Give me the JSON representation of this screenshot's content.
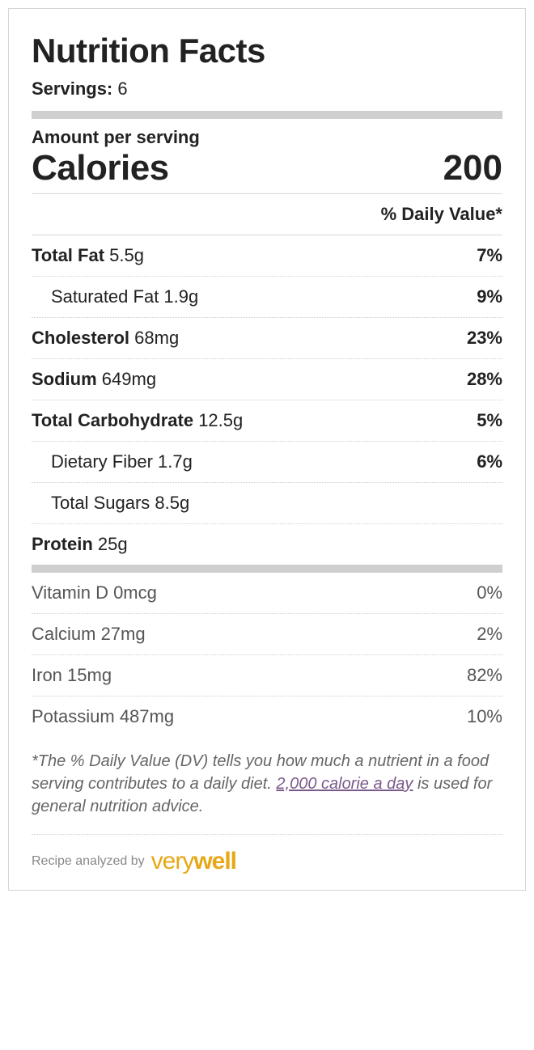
{
  "title": "Nutrition Facts",
  "servings": {
    "label": "Servings:",
    "value": "6"
  },
  "amount_per_serving_label": "Amount per serving",
  "calories": {
    "label": "Calories",
    "value": "200"
  },
  "dv_header": "% Daily Value*",
  "macros": [
    {
      "name": "Total Fat",
      "amount": "5.5g",
      "dv": "7%",
      "bold": true,
      "sub": false
    },
    {
      "name": "Saturated Fat",
      "amount": "1.9g",
      "dv": "9%",
      "bold": false,
      "sub": true
    },
    {
      "name": "Cholesterol",
      "amount": "68mg",
      "dv": "23%",
      "bold": true,
      "sub": false
    },
    {
      "name": "Sodium",
      "amount": "649mg",
      "dv": "28%",
      "bold": true,
      "sub": false
    },
    {
      "name": "Total Carbohydrate",
      "amount": "12.5g",
      "dv": "5%",
      "bold": true,
      "sub": false
    },
    {
      "name": "Dietary Fiber",
      "amount": "1.7g",
      "dv": "6%",
      "bold": false,
      "sub": true
    },
    {
      "name": "Total Sugars",
      "amount": "8.5g",
      "dv": "",
      "bold": false,
      "sub": true
    },
    {
      "name": "Protein",
      "amount": "25g",
      "dv": "",
      "bold": true,
      "sub": false
    }
  ],
  "vitamins": [
    {
      "name": "Vitamin D",
      "amount": "0mcg",
      "dv": "0%"
    },
    {
      "name": "Calcium",
      "amount": "27mg",
      "dv": "2%"
    },
    {
      "name": "Iron",
      "amount": "15mg",
      "dv": "82%"
    },
    {
      "name": "Potassium",
      "amount": "487mg",
      "dv": "10%"
    }
  ],
  "footnote": {
    "pre": "*The % Daily Value (DV) tells you how much a nutrient in a food serving contributes to a daily diet. ",
    "link": "2,000 calorie a day",
    "post": " is used for general nutrition advice."
  },
  "analyzed": {
    "label": "Recipe analyzed by",
    "brand_part1": "very",
    "brand_part2": "well"
  },
  "colors": {
    "border": "#d6d6d6",
    "bar": "#cfcfcf",
    "text": "#222222",
    "muted": "#666666",
    "link": "#7a5a8a",
    "brand": "#e6a817"
  }
}
